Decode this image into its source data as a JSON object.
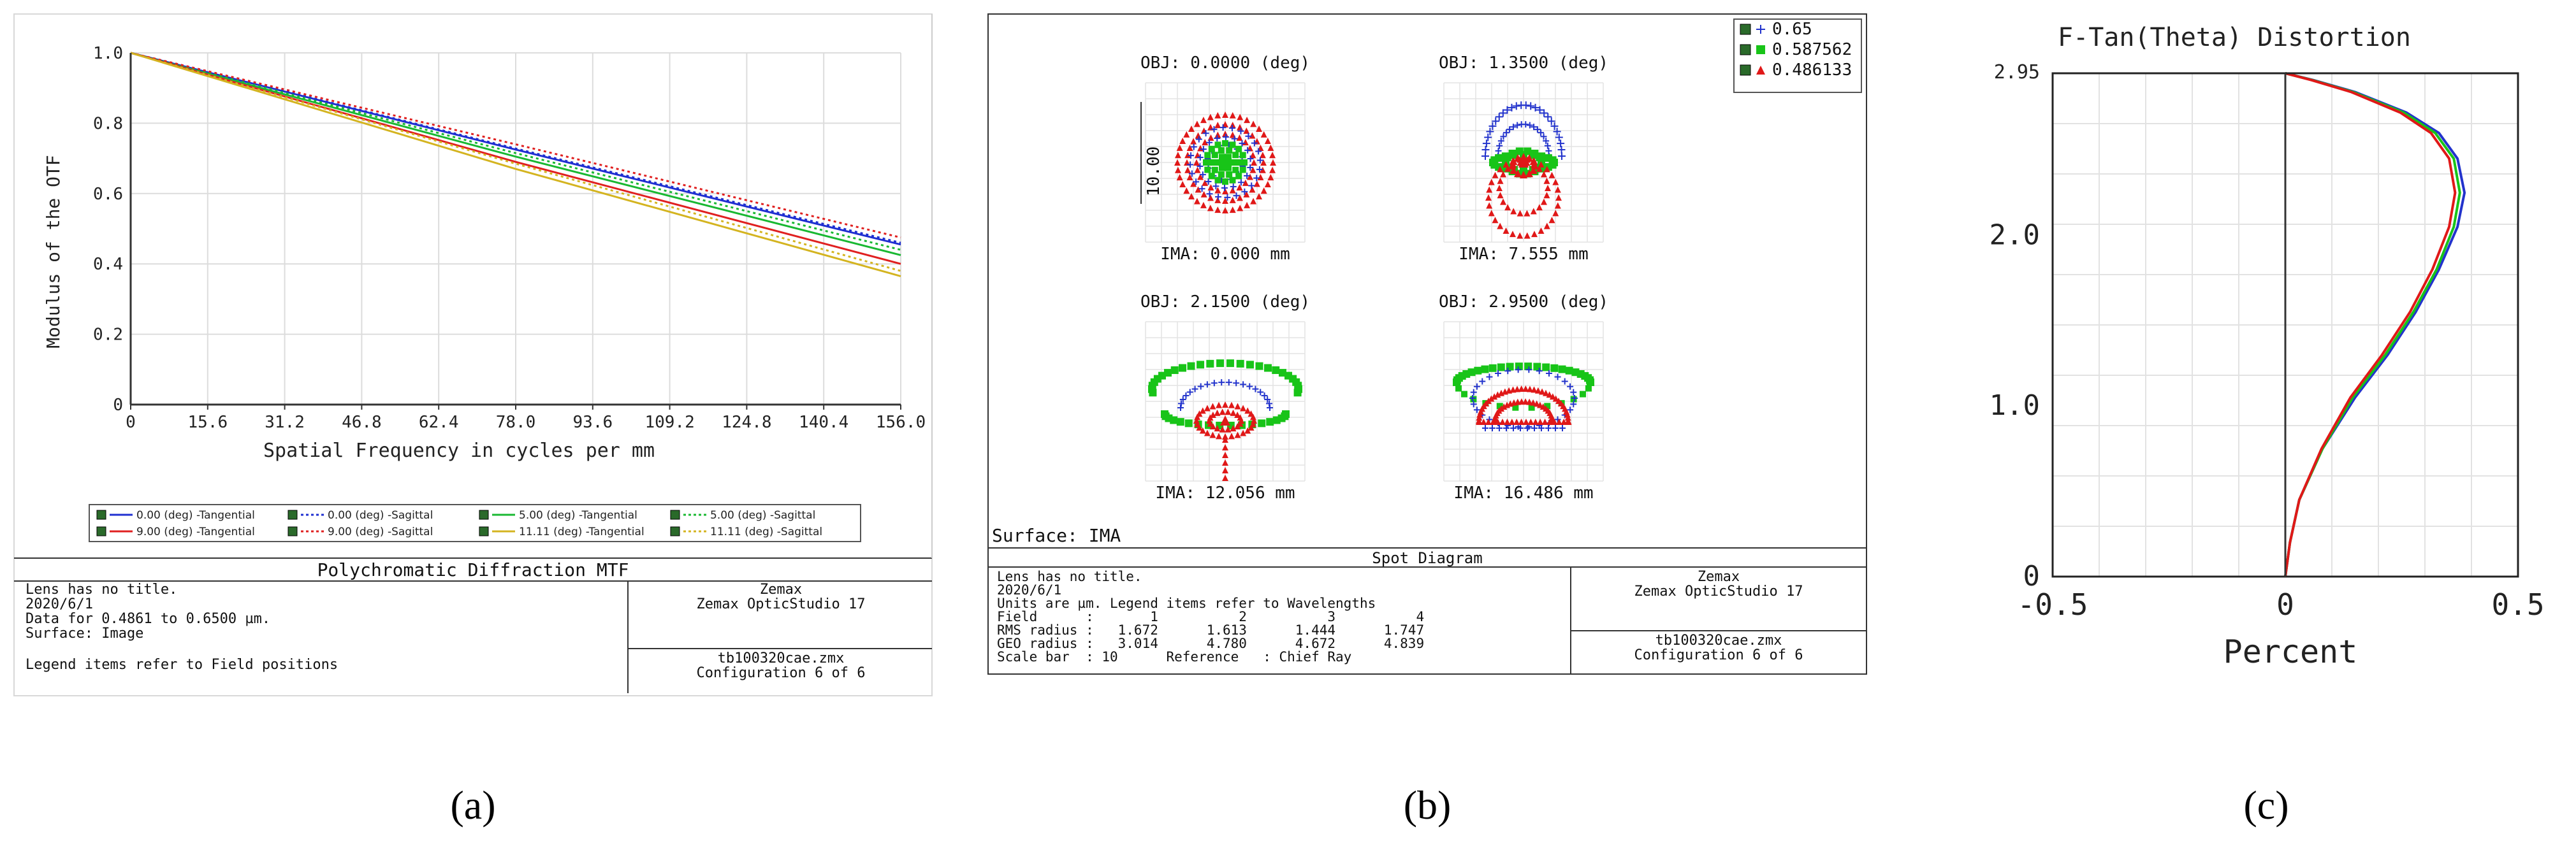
{
  "panel_a": {
    "caption": "(a)",
    "chart_data": {
      "type": "line",
      "title": "Polychromatic Diffraction MTF",
      "xlabel": "Spatial Frequency in cycles per mm",
      "ylabel": "Modulus of the OTF",
      "xlim": [
        0,
        156.0
      ],
      "ylim": [
        0,
        1.0
      ],
      "xticks": [
        "0",
        "15.6",
        "31.2",
        "46.8",
        "62.4",
        "78.0",
        "93.6",
        "109.2",
        "124.8",
        "140.4",
        "156.0"
      ],
      "yticks": [
        "0",
        "0.2",
        "0.4",
        "0.6",
        "0.8",
        "1.0"
      ],
      "x": [
        0,
        78,
        156
      ],
      "series": [
        {
          "name": "0.00 (deg) -Tangential",
          "color": "#1f2fd1",
          "dash": "solid",
          "values": [
            1.0,
            0.725,
            0.455
          ]
        },
        {
          "name": "0.00 (deg) -Sagittal",
          "color": "#1f2fd1",
          "dash": "dotted",
          "values": [
            1.0,
            0.728,
            0.46
          ]
        },
        {
          "name": "5.00 (deg) -Tangential",
          "color": "#19b832",
          "dash": "solid",
          "values": [
            1.0,
            0.705,
            0.425
          ]
        },
        {
          "name": "5.00 (deg) -Sagittal",
          "color": "#19b832",
          "dash": "dotted",
          "values": [
            1.0,
            0.715,
            0.44
          ]
        },
        {
          "name": "9.00 (deg) -Tangential",
          "color": "#e02020",
          "dash": "solid",
          "values": [
            1.0,
            0.69,
            0.4
          ]
        },
        {
          "name": "9.00 (deg) -Sagittal",
          "color": "#e02020",
          "dash": "dotted",
          "values": [
            1.0,
            0.74,
            0.475
          ]
        },
        {
          "name": "11.11 (deg) -Tangential",
          "color": "#d4b420",
          "dash": "solid",
          "values": [
            1.0,
            0.67,
            0.365
          ]
        },
        {
          "name": "11.11 (deg) -Sagittal",
          "color": "#d4b420",
          "dash": "dotted",
          "values": [
            1.0,
            0.685,
            0.38
          ]
        }
      ]
    },
    "info": {
      "left_lines": [
        "Lens has no title.",
        "2020/6/1",
        "Data for 0.4861 to 0.6500 µm.",
        "Surface: Image",
        "Legend items refer to Field positions"
      ],
      "right_top": [
        "Zemax",
        "Zemax OpticStudio 17"
      ],
      "right_bottom": [
        "tb100320cae.zmx",
        "Configuration 6 of 6"
      ]
    }
  },
  "panel_b": {
    "caption": "(b)",
    "title": "Spot Diagram",
    "surface_label": "Surface: IMA",
    "scale_label": "10.00",
    "legend": [
      {
        "label": "0.65",
        "color": "#2233cc",
        "marker": "+"
      },
      {
        "label": "0.587562",
        "color": "#18c418",
        "marker": "square"
      },
      {
        "label": "0.486133",
        "color": "#e01818",
        "marker": "triangle"
      }
    ],
    "spots": [
      {
        "obj": "OBJ: 0.0000 (deg)",
        "ima": "IMA: 0.000 mm"
      },
      {
        "obj": "OBJ: 1.3500 (deg)",
        "ima": "IMA: 7.555 mm"
      },
      {
        "obj": "OBJ: 2.1500 (deg)",
        "ima": "IMA: 12.056 mm"
      },
      {
        "obj": "OBJ: 2.9500 (deg)",
        "ima": "IMA: 16.486 mm"
      }
    ],
    "info": {
      "left_lines": [
        "Lens has no title.",
        "2020/6/1",
        "Units are µm. Legend items refer to Wavelengths",
        "Field      :       1          2          3          4",
        "RMS radius :   1.672      1.613      1.444      1.747",
        "GEO radius :   3.014      4.780      4.672      4.839",
        "Scale bar  : 10      Reference   : Chief Ray"
      ],
      "right_top": [
        "Zemax",
        "Zemax OpticStudio 17"
      ],
      "right_bottom": [
        "tb100320cae.zmx",
        "Configuration 6 of 6"
      ]
    }
  },
  "panel_c": {
    "caption": "(c)",
    "chart_data": {
      "type": "line",
      "title": "F-Tan(Theta) Distortion",
      "xlabel": "Percent",
      "ylabel": "",
      "xlim": [
        -0.5,
        0.5
      ],
      "ylim": [
        0,
        2.95
      ],
      "xticks": [
        "-0.5",
        "0",
        "0.5"
      ],
      "yticks": [
        "0",
        "1.0",
        "2.0",
        "2.95"
      ],
      "series": [
        {
          "name": "0.65",
          "color": "#2233cc",
          "x": [
            0,
            0.01,
            0.03,
            0.08,
            0.15,
            0.22,
            0.28,
            0.33,
            0.37,
            0.385,
            0.37,
            0.33,
            0.26,
            0.15,
            0.06,
            0
          ],
          "y": [
            0,
            0.2,
            0.45,
            0.75,
            1.05,
            1.3,
            1.55,
            1.8,
            2.05,
            2.25,
            2.45,
            2.6,
            2.72,
            2.84,
            2.91,
            2.95
          ]
        },
        {
          "name": "0.587562",
          "color": "#18c418",
          "x": [
            0,
            0.01,
            0.03,
            0.08,
            0.145,
            0.215,
            0.275,
            0.325,
            0.362,
            0.375,
            0.362,
            0.322,
            0.254,
            0.146,
            0.058,
            0
          ],
          "y": [
            0,
            0.2,
            0.45,
            0.75,
            1.05,
            1.3,
            1.55,
            1.8,
            2.05,
            2.25,
            2.45,
            2.6,
            2.72,
            2.84,
            2.91,
            2.95
          ]
        },
        {
          "name": "0.486133",
          "color": "#e01818",
          "x": [
            0,
            0.01,
            0.03,
            0.078,
            0.14,
            0.208,
            0.268,
            0.316,
            0.352,
            0.365,
            0.352,
            0.313,
            0.247,
            0.142,
            0.056,
            0
          ],
          "y": [
            0,
            0.2,
            0.45,
            0.75,
            1.05,
            1.3,
            1.55,
            1.8,
            2.05,
            2.25,
            2.45,
            2.6,
            2.72,
            2.84,
            2.91,
            2.95
          ]
        }
      ]
    }
  }
}
